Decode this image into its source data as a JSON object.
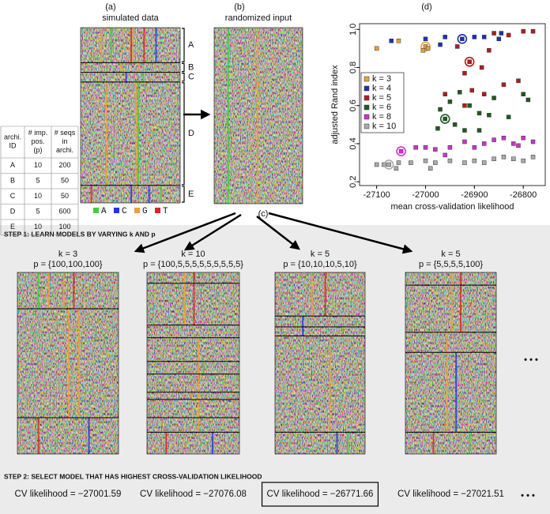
{
  "panel_labels": {
    "a": "(a)",
    "b": "(b)",
    "c": "(c)",
    "d": "(d)"
  },
  "table": {
    "header": [
      "archi. ID",
      "# imp. pos. (p)",
      "# seqs in archi."
    ],
    "rows": [
      [
        "A",
        "10",
        "200"
      ],
      [
        "B",
        "5",
        "50"
      ],
      [
        "C",
        "10",
        "50"
      ],
      [
        "D",
        "5",
        "600"
      ],
      [
        "E",
        "10",
        "100"
      ]
    ]
  },
  "simulated_title": "simulated data",
  "randomized_title": "randomized input",
  "nucleotides": [
    {
      "name": "A",
      "color": "#3ccf3c"
    },
    {
      "name": "C",
      "color": "#2233dd"
    },
    {
      "name": "G",
      "color": "#f0a030"
    },
    {
      "name": "T",
      "color": "#dd2222"
    }
  ],
  "step1": "STEP 1: LEARN MODELS BY VARYING k AND p",
  "step2": "STEP 2: SELECT MODEL THAT HAS HIGHEST CROSS-VALIDATION LIKELIHOOD",
  "models": [
    {
      "k_label": "k = 3",
      "p_label": "p = {100,100,100}",
      "cv": "CV likelihood = −27001.59"
    },
    {
      "k_label": "k = 10",
      "p_label": "p = {100,5,5,5,5,5,5,5,5,5}",
      "cv": "CV likelihood = −27076.08"
    },
    {
      "k_label": "k = 5",
      "p_label": "p = {10,10,10,5,10}",
      "cv": "CV likelihood = −26771.66"
    },
    {
      "k_label": "k = 5",
      "p_label": "p = {5,5,5,5,100}",
      "cv": "CV likelihood = −27021.51"
    }
  ],
  "selected_model": 2,
  "chart_data": {
    "type": "scatter",
    "xlabel": "mean cross-validation likelihood",
    "ylabel": "adjusted Rand index",
    "xlim": [
      -27135,
      -26755
    ],
    "ylim": [
      0.18,
      1.03
    ],
    "xticks": [
      -27100,
      -27000,
      -26900,
      -26800
    ],
    "yticks": [
      0.2,
      0.4,
      0.6,
      0.8,
      {
        "value": 1,
        "label": "1.0"
      }
    ],
    "legend": "left",
    "series": [
      {
        "name": "k = 3",
        "color": "#e8a23a",
        "circled_index": 2,
        "x": [
          -27100,
          -27055,
          -27000,
          -27005,
          -26995
        ],
        "y": [
          0.9,
          0.94,
          0.91,
          0.89,
          0.9
        ]
      },
      {
        "name": "k = 4",
        "color": "#1c2fb8",
        "circled_index": 3,
        "x": [
          -27070,
          -27000,
          -26960,
          -26925,
          -26900,
          -26880,
          -26850,
          -26845,
          -26970
        ],
        "y": [
          0.94,
          0.95,
          0.96,
          0.95,
          0.96,
          0.96,
          0.95,
          0.98,
          0.92
        ]
      },
      {
        "name": "k = 5",
        "color": "#b21c1c",
        "circled_index": 0,
        "x": [
          -26910,
          -26935,
          -26920,
          -26870,
          -26860,
          -26830,
          -26800,
          -26780,
          -26885,
          -26880,
          -26840,
          -26810,
          -26920,
          -26960,
          -26905
        ],
        "y": [
          0.83,
          0.91,
          0.77,
          0.89,
          0.98,
          0.97,
          0.99,
          0.99,
          0.8,
          0.66,
          0.71,
          0.73,
          0.6,
          0.66,
          0.68
        ]
      },
      {
        "name": "k = 6",
        "color": "#1e5c1e",
        "circled_index": 0,
        "x": [
          -26960,
          -26970,
          -26950,
          -26930,
          -26910,
          -26890,
          -26870,
          -26860,
          -26830,
          -26800,
          -26790,
          -26940,
          -26920,
          -26975,
          -26890
        ],
        "y": [
          0.53,
          0.58,
          0.62,
          0.67,
          0.6,
          0.56,
          0.55,
          0.64,
          0.54,
          0.66,
          0.63,
          0.5,
          0.47,
          0.48,
          0.47
        ]
      },
      {
        "name": "k = 8",
        "color": "#d030d0",
        "circled_index": 0,
        "x": [
          -27050,
          -27000,
          -26980,
          -26950,
          -26920,
          -26900,
          -26880,
          -26860,
          -26840,
          -26820,
          -26810,
          -26800,
          -26780,
          -27020,
          -26960
        ],
        "y": [
          0.36,
          0.38,
          0.37,
          0.38,
          0.41,
          0.38,
          0.4,
          0.42,
          0.43,
          0.4,
          0.39,
          0.43,
          0.41,
          0.38,
          0.34
        ]
      },
      {
        "name": "k = 10",
        "color": "#aaaaaa",
        "circled_index": 2,
        "x": [
          -27100,
          -27085,
          -27075,
          -27055,
          -27030,
          -27000,
          -26980,
          -26950,
          -26920,
          -26900,
          -26880,
          -26860,
          -26840,
          -26820,
          -26800,
          -26780,
          -27060,
          -26990
        ],
        "y": [
          0.29,
          0.29,
          0.29,
          0.3,
          0.3,
          0.31,
          0.3,
          0.31,
          0.3,
          0.31,
          0.3,
          0.32,
          0.33,
          0.32,
          0.31,
          0.33,
          0.27,
          0.27
        ]
      }
    ]
  }
}
